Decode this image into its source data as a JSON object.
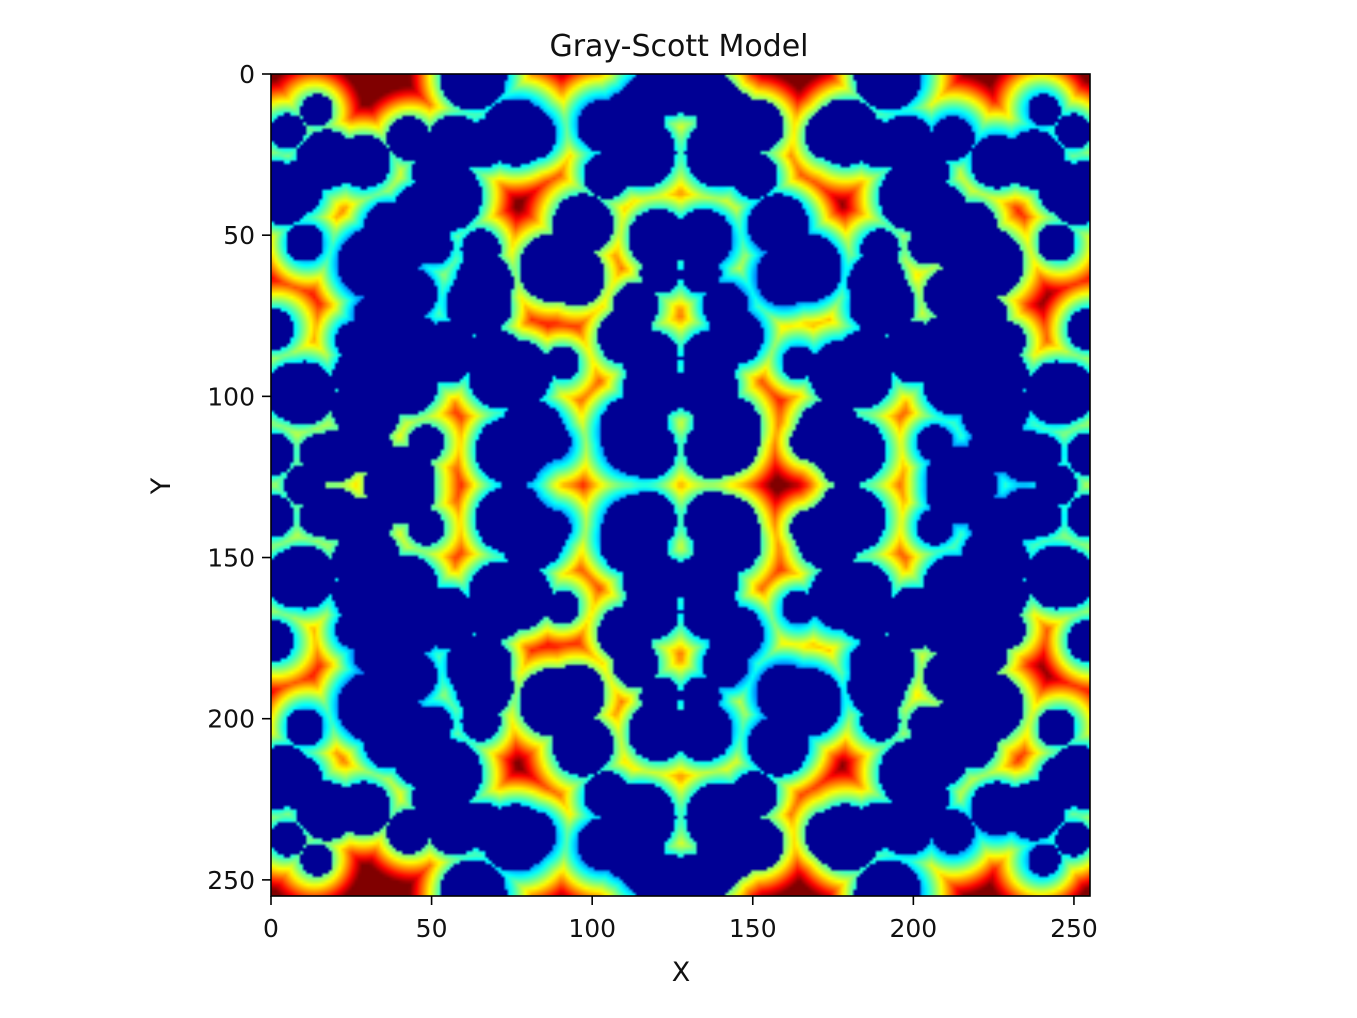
{
  "chart_data": {
    "type": "heatmap",
    "title": "Gray-Scott Model",
    "xlabel": "X",
    "ylabel": "Y",
    "xlim": [
      0,
      255
    ],
    "ylim": [
      255,
      0
    ],
    "x_ticks": [
      "0",
      "50",
      "100",
      "150",
      "200",
      "250"
    ],
    "y_ticks": [
      "0",
      "50",
      "100",
      "150",
      "200",
      "250"
    ],
    "x_tick_values": [
      0,
      50,
      100,
      150,
      200,
      250
    ],
    "y_tick_values": [
      0,
      50,
      100,
      150,
      200,
      250
    ],
    "colormap": "jet",
    "grid": false,
    "legend": "none",
    "frame_color": "#000000"
  }
}
